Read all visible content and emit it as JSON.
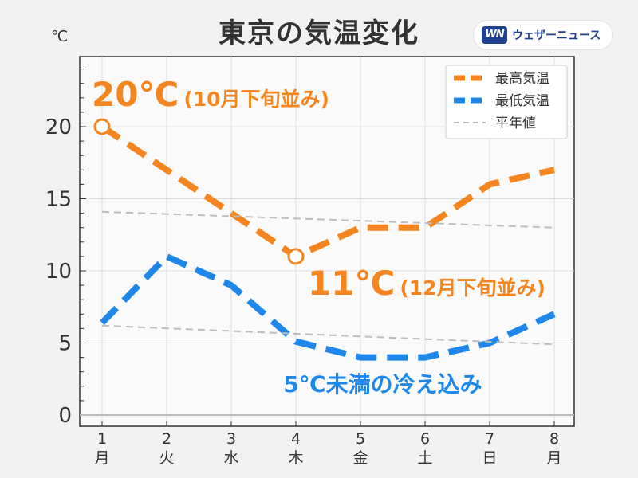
{
  "header": {
    "title": "東京の気温変化",
    "logo_mark": "WN",
    "logo_text": "ウェザーニュース"
  },
  "colors": {
    "max": "#f5861f",
    "min": "#1e87ea",
    "normal": "#bdbdbd",
    "saturday": "#2f86d9",
    "sunday": "#d33a3a"
  },
  "chart_data": {
    "type": "line",
    "title": "東京の気温変化",
    "ylabel": "℃",
    "ylim": [
      0,
      25
    ],
    "yticks": [
      0,
      5,
      10,
      15,
      20
    ],
    "grid": true,
    "legend_position": "top-right",
    "x": [
      1,
      2,
      3,
      4,
      5,
      6,
      7,
      8
    ],
    "weekdays": [
      "月",
      "火",
      "水",
      "木",
      "金",
      "土",
      "日",
      "月"
    ],
    "series": [
      {
        "name": "最高気温",
        "color": "#f5861f",
        "style": "dashed-thick",
        "values": [
          20,
          17,
          14,
          11,
          13,
          13,
          16,
          17
        ]
      },
      {
        "name": "最低気温",
        "color": "#1e87ea",
        "style": "dashed-thick",
        "values": [
          6.4,
          11,
          9,
          5.1,
          4,
          4,
          5,
          7
        ]
      },
      {
        "name": "平年値",
        "color": "#bdbdbd",
        "style": "dashed-thin",
        "values": [
          14.1,
          null,
          null,
          null,
          null,
          null,
          null,
          13.0
        ]
      },
      {
        "name": "",
        "color": "#bdbdbd",
        "style": "dashed-thin",
        "values": [
          6.2,
          null,
          null,
          null,
          null,
          null,
          null,
          4.9
        ]
      }
    ],
    "annotations": [
      {
        "text_big": "20℃",
        "text_small": "(10月下旬並み)",
        "color": "#f5861f",
        "x": 1,
        "y": 20
      },
      {
        "text_big": "11℃",
        "text_small": "(12月下旬並み)",
        "color": "#f5861f",
        "x": 4,
        "y": 11
      },
      {
        "text": "5℃未満の冷え込み",
        "color": "#1e87ea",
        "x": 5.5,
        "y": 2
      }
    ]
  }
}
